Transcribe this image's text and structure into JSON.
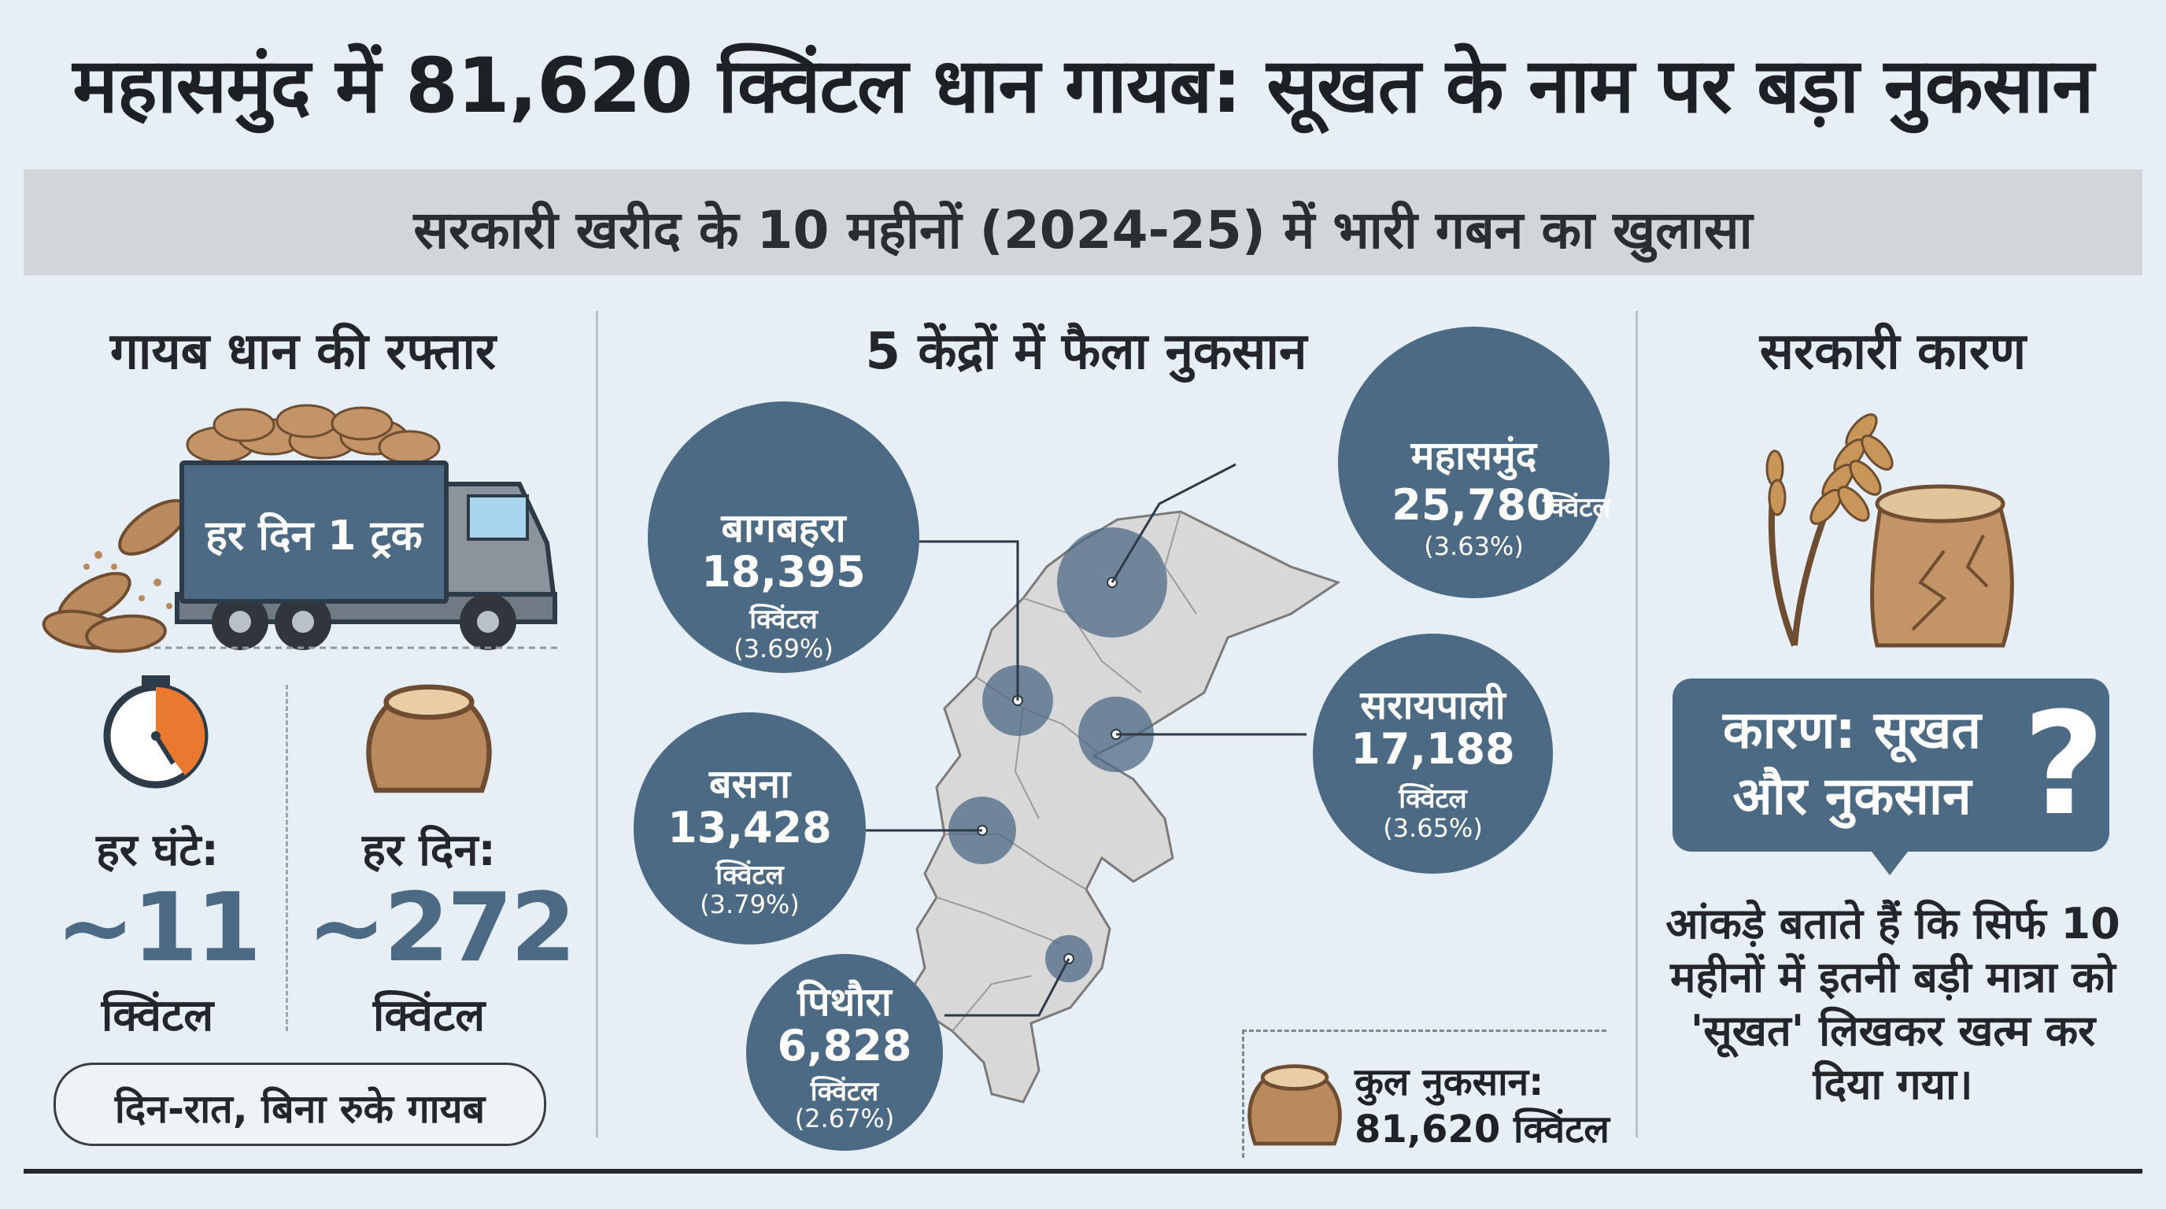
{
  "header": {
    "headline": "महासमुंद में 81,620 क्विंटल धान गायब: सूखत के नाम पर बड़ा नुकसान",
    "subheadline": "सरकारी खरीद के 10 महीनों (2024-25) में भारी गबन का खुलासा"
  },
  "left": {
    "title": "गायब धान की रफ्तार",
    "truck_label": "हर दिन 1 ट्रक",
    "hourly": {
      "label": "हर घंटे:",
      "value": "~11",
      "unit": "क्विंटल"
    },
    "daily": {
      "label": "हर दिन:",
      "value": "~272",
      "unit": "क्विंटल"
    },
    "footer": "दिन-रात, बिना रुके गायब"
  },
  "center": {
    "title": "5 केंद्रों में फैला नुकसान",
    "centers": [
      {
        "name": "बागबहरा",
        "value": "18,395",
        "unit": "क्विंटल",
        "pct": "(3.69%)"
      },
      {
        "name": "बसना",
        "value": "13,428",
        "unit": "क्विंटल",
        "pct": "(3.79%)"
      },
      {
        "name": "पिथौरा",
        "value": "6,828",
        "unit": "क्विंटल",
        "pct": "(2.67%)"
      },
      {
        "name": "महासमुंद",
        "value": "25,780",
        "unit": "क्विंटल",
        "pct": "(3.63%)"
      },
      {
        "name": "सरायपाली",
        "value": "17,188",
        "unit": "क्विंटल",
        "pct": "(3.65%)"
      }
    ],
    "total_label": "कुल नुकसान:",
    "total_value": "81,620 क्विंटल"
  },
  "right": {
    "title": "सरकारी कारण",
    "reason": "कारण: सूखत और नुकसान",
    "question_mark": "?",
    "explanation": "आंकड़े बताते हैं कि सिर्फ 10 महीनों में इतनी बड़ी मात्रा को 'सूखत' लिखकर खत्म कर दिया गया।"
  },
  "icons": [
    "truck-icon",
    "grain-sack-icon",
    "stopwatch-icon",
    "map-icon",
    "wheat-icon",
    "torn-sack-icon"
  ],
  "colors": {
    "background": "#e6eef6",
    "accent": "#4d6a85",
    "sack": "#b98a5e",
    "timer_orange": "#e8792f",
    "map": "#d8d8d8"
  }
}
